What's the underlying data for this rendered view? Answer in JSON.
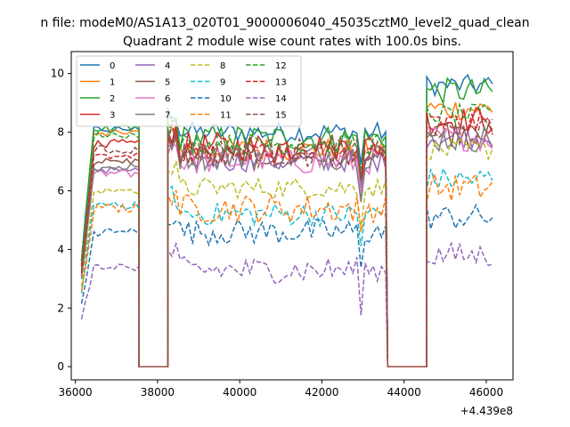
{
  "suptitle": "n file: modeM0/AS1A13_020T01_9000006040_45035cztM0_level2_quad_clean",
  "chart_data": {
    "type": "line",
    "title": "Quadrant 2 module wise count rates with 100.0s bins.",
    "xlabel": "",
    "ylabel": "",
    "x_offset_label": "+4.439e8",
    "xlim": [
      35900,
      46650
    ],
    "ylim": [
      -0.45,
      10.75
    ],
    "xticks": [
      36000,
      38000,
      40000,
      42000,
      44000,
      46000
    ],
    "xtick_labels": [
      "36000",
      "38000",
      "40000",
      "42000",
      "44000",
      "46000"
    ],
    "yticks": [
      0,
      2,
      4,
      6,
      8,
      10
    ],
    "ytick_labels": [
      "0",
      "2",
      "4",
      "6",
      "8",
      "10"
    ],
    "grid": false,
    "legend_placement": "top-left",
    "legend_columns": 4,
    "segments": [
      {
        "start": 36150,
        "end": 37550,
        "zero_after": [
          37550,
          38250
        ]
      },
      {
        "start": 38250,
        "end": 43600,
        "zero_after": [
          43600,
          44550
        ]
      },
      {
        "start": 44550,
        "end": 46200
      }
    ],
    "series": [
      {
        "name": "0",
        "color": "#1f77b4",
        "dash": false,
        "level_a": 8.1,
        "level_b": 8.0,
        "level_c": 9.6
      },
      {
        "name": "1",
        "color": "#ff7f0e",
        "dash": false,
        "level_a": 8.0,
        "level_b": 7.4,
        "level_c": 8.8
      },
      {
        "name": "2",
        "color": "#2ca02c",
        "dash": false,
        "level_a": 8.1,
        "level_b": 7.8,
        "level_c": 9.4
      },
      {
        "name": "3",
        "color": "#d62728",
        "dash": false,
        "level_a": 7.6,
        "level_b": 7.5,
        "level_c": 8.4
      },
      {
        "name": "4",
        "color": "#9467bd",
        "dash": false,
        "level_a": 6.7,
        "level_b": 7.0,
        "level_c": 7.8
      },
      {
        "name": "5",
        "color": "#8c564b",
        "dash": false,
        "level_a": 7.0,
        "level_b": 7.2,
        "level_c": 7.9
      },
      {
        "name": "6",
        "color": "#e377c2",
        "dash": false,
        "level_a": 6.6,
        "level_b": 7.0,
        "level_c": 7.8
      },
      {
        "name": "7",
        "color": "#7f7f7f",
        "dash": false,
        "level_a": 6.8,
        "level_b": 7.2,
        "level_c": 7.8
      },
      {
        "name": "8",
        "color": "#bcbd22",
        "dash": true,
        "level_a": 6.0,
        "level_b": 6.1,
        "level_c": 7.4
      },
      {
        "name": "9",
        "color": "#17becf",
        "dash": true,
        "level_a": 5.5,
        "level_b": 5.2,
        "level_c": 6.4
      },
      {
        "name": "10",
        "color": "#1f77b4",
        "dash": true,
        "level_a": 4.6,
        "level_b": 4.6,
        "level_c": 5.1
      },
      {
        "name": "11",
        "color": "#ff7f0e",
        "dash": true,
        "level_a": 5.4,
        "level_b": 5.4,
        "level_c": 6.1
      },
      {
        "name": "12",
        "color": "#2ca02c",
        "dash": true,
        "level_a": 7.9,
        "level_b": 7.6,
        "level_c": 8.6
      },
      {
        "name": "13",
        "color": "#d62728",
        "dash": true,
        "level_a": 7.2,
        "level_b": 7.3,
        "level_c": 8.3
      },
      {
        "name": "14",
        "color": "#9467bd",
        "dash": true,
        "level_a": 3.4,
        "level_b": 3.3,
        "level_c": 3.8
      },
      {
        "name": "15",
        "color": "#8c564b",
        "dash": true,
        "level_a": 7.4,
        "level_b": 7.3,
        "level_c": 8.0
      }
    ]
  }
}
